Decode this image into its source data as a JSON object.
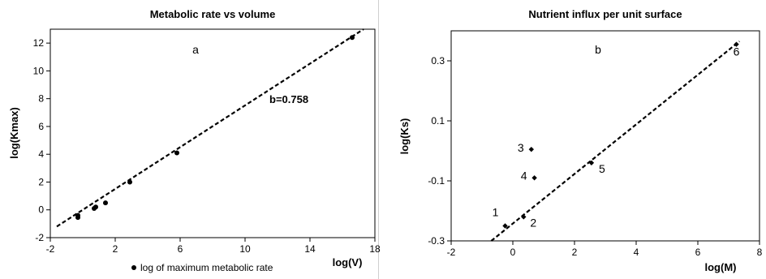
{
  "chart_data": [
    {
      "type": "scatter",
      "title": "Metabolic rate vs volume",
      "panel_label": "a",
      "xlabel": "log(V)",
      "ylabel": "log(Kmax)",
      "xlim": [
        -2,
        18
      ],
      "ylim": [
        -2,
        13
      ],
      "x_ticks": [
        -2,
        2,
        6,
        10,
        14,
        18
      ],
      "y_ticks": [
        -2,
        0,
        2,
        4,
        6,
        8,
        10,
        12
      ],
      "grid": false,
      "legend": {
        "position": "bottom-center",
        "entries": [
          "log of maximum metabolic rate"
        ]
      },
      "points": [
        {
          "x": -0.3,
          "y": -0.4
        },
        {
          "x": -0.3,
          "y": -0.55
        },
        {
          "x": 0.8,
          "y": 0.2
        },
        {
          "x": 0.7,
          "y": 0.1
        },
        {
          "x": 1.4,
          "y": 0.5
        },
        {
          "x": 2.9,
          "y": 2.0
        },
        {
          "x": 5.8,
          "y": 4.1
        },
        {
          "x": 16.6,
          "y": 12.4
        }
      ],
      "trendline": {
        "x": [
          -1.6,
          17.3
        ],
        "y": [
          -1.2,
          13.0
        ],
        "style": "dashed"
      },
      "annotations": [
        {
          "text": "b=0.758",
          "x": 11.5,
          "y": 7.7
        }
      ]
    },
    {
      "type": "scatter",
      "title": "Nutrient influx per unit surface",
      "panel_label": "b",
      "xlabel": "log(M)",
      "ylabel": "log(Ks)",
      "xlim": [
        -2,
        8
      ],
      "ylim": [
        -0.3,
        0.4
      ],
      "x_ticks": [
        -2,
        0,
        2,
        4,
        6,
        8
      ],
      "y_ticks": [
        -0.3,
        -0.1,
        0.1,
        0.3
      ],
      "y_tick_labels": [
        "-0.3",
        "-0.1",
        "0.1",
        "0.3"
      ],
      "grid": false,
      "points": [
        {
          "x": -0.25,
          "y": -0.25,
          "label": "1"
        },
        {
          "x": 0.35,
          "y": -0.22,
          "label": "2"
        },
        {
          "x": 0.6,
          "y": 0.005,
          "label": "3"
        },
        {
          "x": 0.7,
          "y": -0.09,
          "label": "4"
        },
        {
          "x": 2.55,
          "y": -0.04,
          "label": "5"
        },
        {
          "x": 7.25,
          "y": 0.355,
          "label": "6"
        }
      ],
      "trendline": {
        "x": [
          -0.7,
          7.35
        ],
        "y": [
          -0.3,
          0.365
        ],
        "style": "dashed"
      }
    }
  ]
}
